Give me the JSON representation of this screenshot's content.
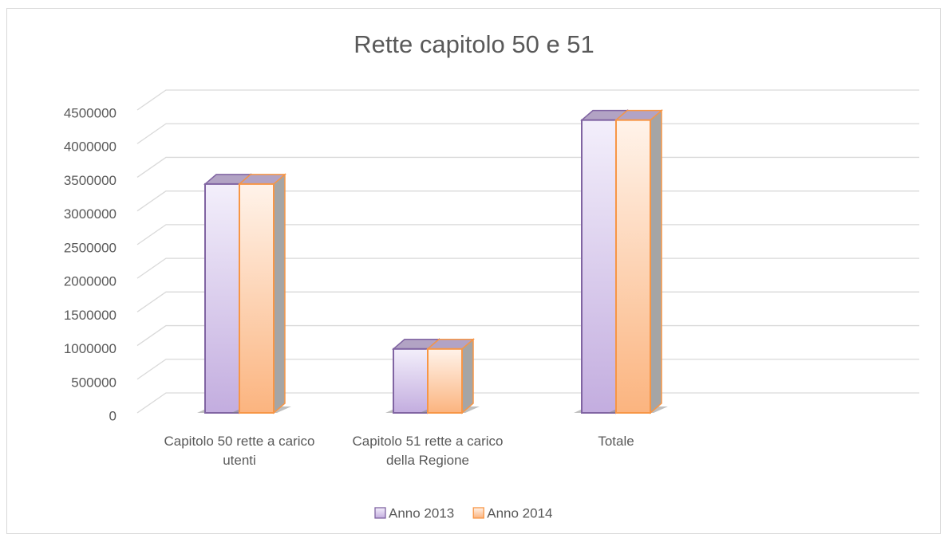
{
  "chart_data": {
    "type": "bar3d",
    "title": "Rette capitolo 50 e 51",
    "categories": [
      "Capitolo 50 rette a carico utenti",
      "Capitolo 51 rette a carico della Regione",
      "Totale"
    ],
    "series": [
      {
        "name": "Anno 2013",
        "color": "#8064a2",
        "values": [
          3400000,
          950000,
          4350000
        ]
      },
      {
        "name": "Anno 2014",
        "color": "#f79646",
        "values": [
          3400000,
          950000,
          4350000
        ]
      }
    ],
    "ylim": [
      0,
      4500000
    ],
    "yticks": [
      0,
      500000,
      1000000,
      1500000,
      2000000,
      2500000,
      3000000,
      3500000,
      4000000,
      4500000
    ],
    "grid": true,
    "legend": "bottom"
  }
}
